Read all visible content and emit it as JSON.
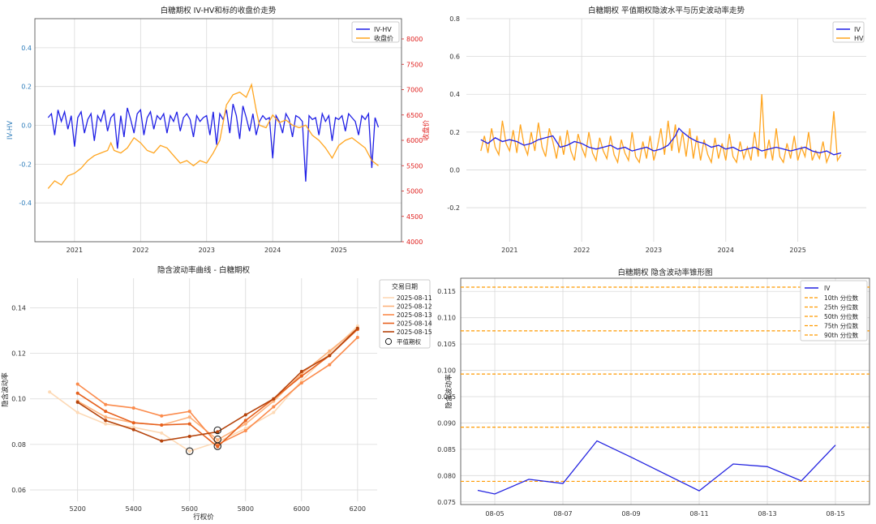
{
  "colors": {
    "blue": "#1f1fe6",
    "orange": "#ffa51f",
    "grid": "#d9d9d9",
    "axis_left": "#2b7bba",
    "axis_right": "#e0211f",
    "q_line": "#ff9a00",
    "iv_blue": "#2323e0"
  },
  "chart_data": [
    {
      "type": "line",
      "title": "白糖期权 IV-HV和标的收盘价走势",
      "ylabel": "IV-HV",
      "ylabel_right": "收盘价",
      "ylim": [
        -0.6,
        0.55
      ],
      "ylim_right": [
        4000,
        8400
      ],
      "yticks": [
        -0.4,
        -0.2,
        0.0,
        0.2,
        0.4
      ],
      "yticks_right": [
        4000,
        4500,
        5000,
        5500,
        6000,
        6500,
        7000,
        7500,
        8000
      ],
      "xticks": [
        "2021",
        "2022",
        "2023",
        "2024",
        "2025"
      ],
      "xlim": [
        2020.4,
        2025.95
      ],
      "legend": {
        "position": "top-right",
        "entries": [
          "IV-HV",
          "收盘价"
        ]
      },
      "grid": true,
      "series": [
        {
          "name": "IV-HV",
          "axis": "left",
          "color": "blue",
          "x": [
            2020.6,
            2020.65,
            2020.7,
            2020.75,
            2020.8,
            2020.85,
            2020.9,
            2020.95,
            2021.0,
            2021.05,
            2021.1,
            2021.15,
            2021.2,
            2021.25,
            2021.3,
            2021.35,
            2021.4,
            2021.45,
            2021.5,
            2021.55,
            2021.6,
            2021.65,
            2021.7,
            2021.75,
            2021.8,
            2021.85,
            2021.9,
            2021.95,
            2022.0,
            2022.05,
            2022.1,
            2022.15,
            2022.2,
            2022.25,
            2022.3,
            2022.35,
            2022.4,
            2022.45,
            2022.5,
            2022.55,
            2022.6,
            2022.65,
            2022.7,
            2022.75,
            2022.8,
            2022.85,
            2022.9,
            2022.95,
            2023.0,
            2023.05,
            2023.1,
            2023.15,
            2023.2,
            2023.25,
            2023.3,
            2023.35,
            2023.4,
            2023.45,
            2023.5,
            2023.55,
            2023.6,
            2023.65,
            2023.7,
            2023.75,
            2023.8,
            2023.85,
            2023.9,
            2023.95,
            2024.0,
            2024.05,
            2024.1,
            2024.15,
            2024.2,
            2024.25,
            2024.3,
            2024.35,
            2024.4,
            2024.45,
            2024.5,
            2024.55,
            2024.6,
            2024.65,
            2024.7,
            2024.75,
            2024.8,
            2024.85,
            2024.9,
            2024.95,
            2025.0,
            2025.05,
            2025.1,
            2025.15,
            2025.2,
            2025.25,
            2025.3,
            2025.35,
            2025.4,
            2025.45,
            2025.5,
            2025.55,
            2025.6
          ],
          "y": [
            0.04,
            0.06,
            -0.05,
            0.08,
            0.02,
            0.07,
            -0.02,
            0.05,
            -0.11,
            0.04,
            0.07,
            -0.04,
            0.03,
            0.06,
            -0.08,
            0.05,
            0.02,
            0.08,
            -0.03,
            0.04,
            0.06,
            -0.12,
            0.05,
            -0.06,
            0.09,
            0.03,
            -0.04,
            0.06,
            0.08,
            -0.05,
            0.04,
            0.07,
            -0.02,
            0.05,
            0.03,
            0.06,
            -0.04,
            0.05,
            0.02,
            0.07,
            -0.03,
            0.04,
            0.06,
            0.03,
            -0.06,
            0.05,
            0.02,
            0.04,
            0.05,
            -0.05,
            0.07,
            -0.1,
            0.06,
            0.03,
            0.08,
            -0.04,
            0.11,
            0.05,
            -0.07,
            0.1,
            0.04,
            -0.03,
            0.06,
            -0.05,
            0.02,
            0.05,
            0.03,
            0.04,
            -0.17,
            0.05,
            0.02,
            -0.04,
            0.06,
            0.03,
            -0.06,
            0.05,
            0.04,
            0.02,
            -0.29,
            0.05,
            0.03,
            0.04,
            -0.05,
            0.06,
            0.02,
            0.05,
            -0.08,
            0.04,
            0.03,
            0.05,
            -0.03,
            0.06,
            0.04,
            0.02,
            -0.05,
            0.05,
            0.03,
            0.06,
            -0.22,
            0.04,
            -0.01
          ]
        },
        {
          "name": "收盘价",
          "axis": "right",
          "color": "orange",
          "x": [
            2020.6,
            2020.7,
            2020.8,
            2020.9,
            2021.0,
            2021.1,
            2021.2,
            2021.3,
            2021.4,
            2021.5,
            2021.55,
            2021.6,
            2021.7,
            2021.8,
            2021.9,
            2022.0,
            2022.1,
            2022.2,
            2022.3,
            2022.4,
            2022.5,
            2022.6,
            2022.7,
            2022.8,
            2022.9,
            2023.0,
            2023.1,
            2023.2,
            2023.3,
            2023.4,
            2023.5,
            2023.6,
            2023.68,
            2023.75,
            2023.8,
            2023.9,
            2024.0,
            2024.1,
            2024.2,
            2024.3,
            2024.4,
            2024.5,
            2024.6,
            2024.7,
            2024.8,
            2024.9,
            2025.0,
            2025.1,
            2025.2,
            2025.3,
            2025.4,
            2025.5,
            2025.6
          ],
          "y": [
            5050,
            5200,
            5120,
            5300,
            5350,
            5450,
            5600,
            5700,
            5750,
            5800,
            5950,
            5800,
            5750,
            5850,
            6050,
            5950,
            5800,
            5750,
            5900,
            5850,
            5700,
            5550,
            5600,
            5500,
            5600,
            5550,
            5750,
            6000,
            6700,
            6900,
            6950,
            6850,
            7100,
            6600,
            6300,
            6250,
            6500,
            6350,
            6400,
            6300,
            6250,
            6300,
            6100,
            6000,
            5850,
            5650,
            5900,
            6000,
            6050,
            5950,
            5850,
            5600,
            5500
          ]
        }
      ]
    },
    {
      "type": "line",
      "title": "白糖期权 平值期权隐波水平与历史波动率走势",
      "ylim": [
        -0.38,
        0.8
      ],
      "yticks": [
        -0.2,
        0.0,
        0.2,
        0.4,
        0.6,
        0.8
      ],
      "xticks": [
        "2021",
        "2022",
        "2023",
        "2024",
        "2025"
      ],
      "xlim": [
        2020.4,
        2025.95
      ],
      "legend": {
        "position": "top-right",
        "entries": [
          "IV",
          "HV"
        ]
      },
      "grid": true,
      "series": [
        {
          "name": "IV",
          "color": "blue",
          "x": [
            2020.6,
            2020.7,
            2020.8,
            2020.9,
            2021.0,
            2021.1,
            2021.2,
            2021.3,
            2021.4,
            2021.5,
            2021.6,
            2021.7,
            2021.8,
            2021.9,
            2022.0,
            2022.1,
            2022.2,
            2022.3,
            2022.4,
            2022.5,
            2022.6,
            2022.7,
            2022.8,
            2022.9,
            2023.0,
            2023.1,
            2023.2,
            2023.3,
            2023.35,
            2023.4,
            2023.5,
            2023.6,
            2023.7,
            2023.8,
            2023.9,
            2024.0,
            2024.1,
            2024.2,
            2024.3,
            2024.4,
            2024.5,
            2024.6,
            2024.7,
            2024.8,
            2024.9,
            2025.0,
            2025.1,
            2025.2,
            2025.3,
            2025.4,
            2025.5,
            2025.6
          ],
          "y": [
            0.16,
            0.14,
            0.17,
            0.15,
            0.16,
            0.15,
            0.13,
            0.14,
            0.16,
            0.17,
            0.18,
            0.12,
            0.13,
            0.15,
            0.14,
            0.12,
            0.11,
            0.12,
            0.13,
            0.11,
            0.12,
            0.1,
            0.11,
            0.12,
            0.1,
            0.11,
            0.13,
            0.18,
            0.22,
            0.2,
            0.17,
            0.15,
            0.14,
            0.12,
            0.13,
            0.11,
            0.12,
            0.1,
            0.11,
            0.12,
            0.1,
            0.11,
            0.12,
            0.11,
            0.1,
            0.11,
            0.12,
            0.1,
            0.09,
            0.1,
            0.08,
            0.09
          ]
        },
        {
          "name": "HV",
          "color": "orange",
          "x": [
            2020.6,
            2020.65,
            2020.7,
            2020.75,
            2020.8,
            2020.85,
            2020.9,
            2020.95,
            2021.0,
            2021.05,
            2021.1,
            2021.15,
            2021.2,
            2021.25,
            2021.3,
            2021.35,
            2021.4,
            2021.45,
            2021.5,
            2021.55,
            2021.6,
            2021.65,
            2021.7,
            2021.75,
            2021.8,
            2021.85,
            2021.9,
            2021.95,
            2022.0,
            2022.05,
            2022.1,
            2022.15,
            2022.2,
            2022.25,
            2022.3,
            2022.35,
            2022.4,
            2022.45,
            2022.5,
            2022.55,
            2022.6,
            2022.65,
            2022.7,
            2022.75,
            2022.8,
            2022.85,
            2022.9,
            2022.95,
            2023.0,
            2023.05,
            2023.1,
            2023.15,
            2023.2,
            2023.25,
            2023.3,
            2023.35,
            2023.4,
            2023.45,
            2023.5,
            2023.55,
            2023.6,
            2023.65,
            2023.7,
            2023.75,
            2023.8,
            2023.85,
            2023.9,
            2023.95,
            2024.0,
            2024.05,
            2024.1,
            2024.15,
            2024.2,
            2024.25,
            2024.3,
            2024.35,
            2024.4,
            2024.45,
            2024.5,
            2024.55,
            2024.6,
            2024.65,
            2024.7,
            2024.75,
            2024.8,
            2024.85,
            2024.9,
            2024.95,
            2025.0,
            2025.05,
            2025.1,
            2025.15,
            2025.2,
            2025.25,
            2025.3,
            2025.35,
            2025.4,
            2025.45,
            2025.5,
            2025.55,
            2025.6
          ],
          "y": [
            0.1,
            0.18,
            0.09,
            0.22,
            0.12,
            0.08,
            0.26,
            0.14,
            0.1,
            0.21,
            0.09,
            0.24,
            0.13,
            0.08,
            0.2,
            0.1,
            0.25,
            0.12,
            0.07,
            0.22,
            0.15,
            0.06,
            0.18,
            0.08,
            0.21,
            0.1,
            0.05,
            0.19,
            0.12,
            0.07,
            0.2,
            0.09,
            0.05,
            0.17,
            0.1,
            0.06,
            0.18,
            0.08,
            0.04,
            0.16,
            0.09,
            0.05,
            0.2,
            0.07,
            0.04,
            0.15,
            0.06,
            0.18,
            0.05,
            0.12,
            0.22,
            0.08,
            0.26,
            0.1,
            0.24,
            0.09,
            0.2,
            0.07,
            0.22,
            0.06,
            0.18,
            0.05,
            0.16,
            0.08,
            0.04,
            0.17,
            0.06,
            0.14,
            0.05,
            0.19,
            0.07,
            0.04,
            0.15,
            0.06,
            0.12,
            0.05,
            0.2,
            0.07,
            0.4,
            0.06,
            0.16,
            0.05,
            0.22,
            0.07,
            0.04,
            0.14,
            0.06,
            0.18,
            0.05,
            0.12,
            0.07,
            0.2,
            0.05,
            0.1,
            0.06,
            0.15,
            0.04,
            0.09,
            0.31,
            0.05,
            0.08
          ]
        }
      ]
    },
    {
      "type": "line",
      "title": "隐含波动率曲线 - 白糖期权",
      "xlabel": "行权价",
      "ylabel": "隐含波动率",
      "xlim": [
        5030,
        6270
      ],
      "ylim": [
        0.055,
        0.153
      ],
      "xticks": [
        5200,
        5400,
        5600,
        5800,
        6000,
        6200
      ],
      "yticks": [
        0.06,
        0.08,
        0.1,
        0.12,
        0.14
      ],
      "legend": {
        "position": "top-right",
        "title": "交易日期",
        "marker_label": "平值期权"
      },
      "grid": true,
      "series": [
        {
          "name": "2025-08-11",
          "color": "#fdd9b5",
          "x": [
            5100,
            5200,
            5300,
            5400,
            5500,
            5600,
            5700,
            5800,
            5900,
            6000,
            6100,
            6200
          ],
          "y": [
            0.103,
            0.094,
            0.089,
            0.0875,
            0.085,
            0.077,
            0.081,
            0.087,
            0.094,
            0.108,
            0.12,
            0.132
          ]
        },
        {
          "name": "2025-08-12",
          "color": "#fdb17a",
          "x": [
            5200,
            5300,
            5400,
            5500,
            5600,
            5700,
            5800,
            5900,
            6000,
            6100,
            6200
          ],
          "y": [
            0.099,
            0.092,
            0.0895,
            0.0885,
            0.092,
            0.082,
            0.089,
            0.099,
            0.111,
            0.121,
            0.131
          ]
        },
        {
          "name": "2025-08-13",
          "color": "#fb8b4c",
          "x": [
            5200,
            5300,
            5400,
            5500,
            5600,
            5700,
            5800,
            5900,
            6000,
            6100,
            6200
          ],
          "y": [
            0.1065,
            0.0975,
            0.096,
            0.0925,
            0.0945,
            0.08,
            0.086,
            0.0965,
            0.107,
            0.115,
            0.127
          ]
        },
        {
          "name": "2025-08-14",
          "color": "#e6601d",
          "x": [
            5200,
            5300,
            5400,
            5500,
            5600,
            5700,
            5800,
            5900,
            6000,
            6100,
            6200
          ],
          "y": [
            0.1025,
            0.0945,
            0.0895,
            0.0885,
            0.089,
            0.079,
            0.0905,
            0.1,
            0.11,
            0.119,
            0.1305
          ]
        },
        {
          "name": "2025-08-15",
          "color": "#b5430b",
          "x": [
            5200,
            5300,
            5400,
            5500,
            5600,
            5700,
            5800,
            5900,
            6000,
            6100,
            6200
          ],
          "y": [
            0.0985,
            0.0905,
            0.0865,
            0.0815,
            0.0835,
            0.0855,
            0.093,
            0.1,
            0.112,
            0.119,
            0.131
          ]
        }
      ],
      "atm_points": [
        {
          "x": 5600,
          "y": 0.077
        },
        {
          "x": 5700,
          "y": 0.0862
        },
        {
          "x": 5700,
          "y": 0.0822
        },
        {
          "x": 5700,
          "y": 0.0792
        }
      ]
    },
    {
      "type": "line",
      "title": "白糖期权 隐含波动率锥形图",
      "ylabel": "隐含波动率",
      "ylim": [
        0.0745,
        0.1175
      ],
      "yticks": [
        0.075,
        0.08,
        0.085,
        0.09,
        0.095,
        0.1,
        0.105,
        0.11,
        0.115
      ],
      "xlim": [
        0,
        12
      ],
      "xticks": [
        "08-05",
        "08-07",
        "08-09",
        "08-11",
        "08-13",
        "08-15"
      ],
      "xtick_positions": [
        1,
        3,
        5,
        7,
        9,
        11
      ],
      "legend": {
        "position": "top-right"
      },
      "grid": true,
      "series": [
        {
          "name": "IV",
          "color": "iv_blue",
          "x": [
            0.5,
            1,
            2,
            3,
            4,
            5,
            7,
            8,
            9,
            10,
            11
          ],
          "y": [
            0.0772,
            0.0765,
            0.0793,
            0.0785,
            0.0866,
            0.0835,
            0.0771,
            0.0822,
            0.0817,
            0.079,
            0.0858
          ]
        }
      ],
      "quantiles": [
        {
          "name": "10th 分位数",
          "value": 0.0789
        },
        {
          "name": "25th 分位数",
          "value": 0.0892
        },
        {
          "name": "50th 分位数",
          "value": 0.0993
        },
        {
          "name": "75th 分位数",
          "value": 0.1075
        },
        {
          "name": "90th 分位数",
          "value": 0.1158
        }
      ]
    }
  ]
}
